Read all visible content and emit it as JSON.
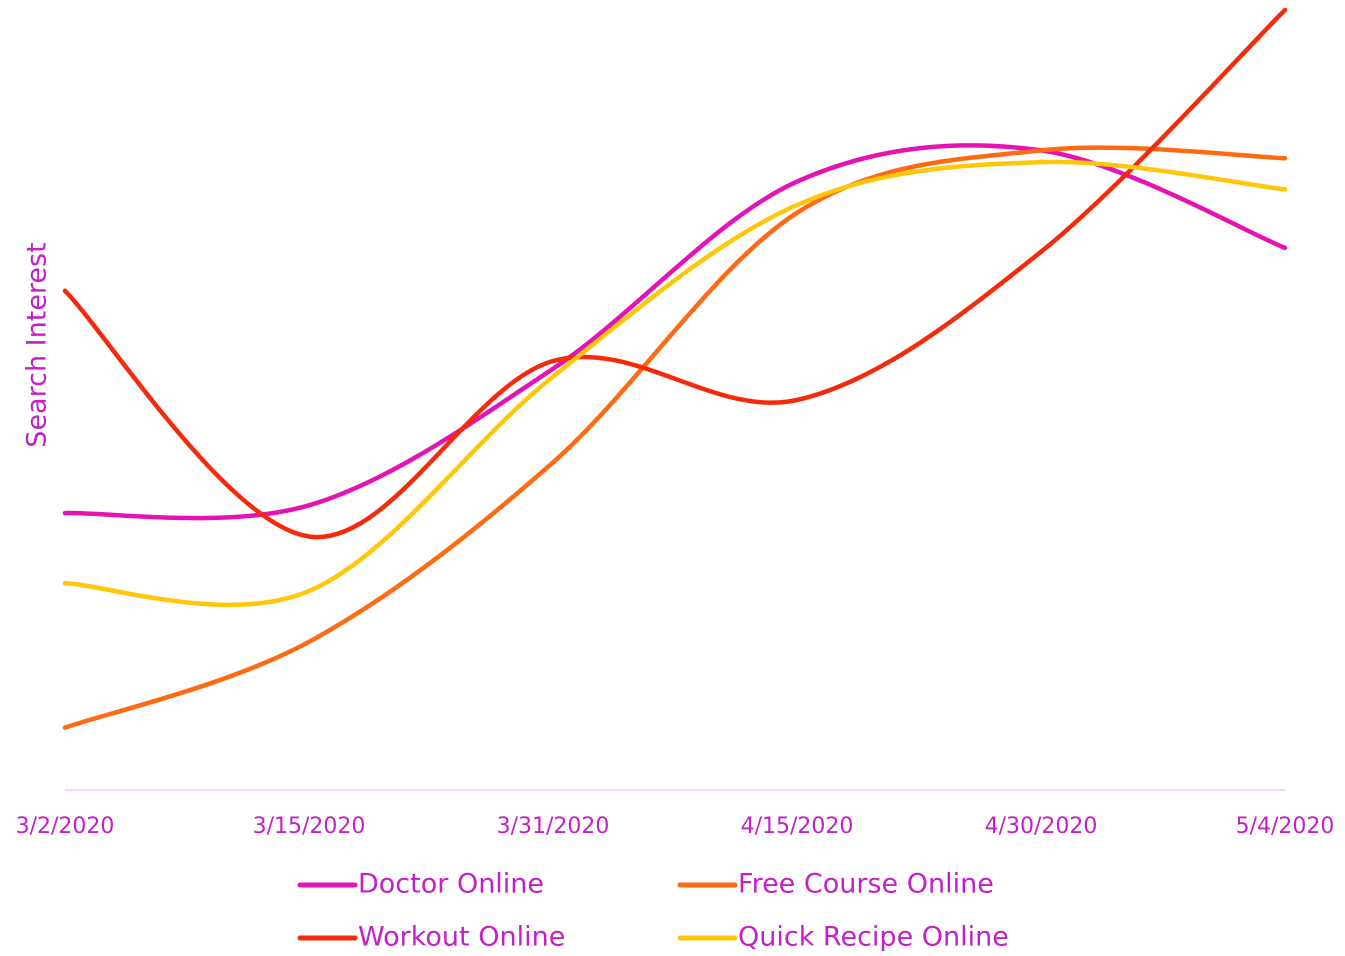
{
  "chart_data": {
    "type": "line",
    "y_label": "Search Interest",
    "categories": [
      "3/2/2020",
      "3/15/2020",
      "3/31/2020",
      "4/15/2020",
      "4/30/2020",
      "5/4/2020"
    ],
    "ylim": [
      0,
      100
    ],
    "smooth": true,
    "series": [
      {
        "name": "Doctor Online",
        "color": "#e512b4",
        "values": [
          35.5,
          36.5,
          54,
          78,
          82,
          69.5
        ]
      },
      {
        "name": "Free Course Online",
        "color": "#ff6a12",
        "values": [
          8,
          19,
          42,
          74,
          82,
          81
        ]
      },
      {
        "name": "Workout Online",
        "color": "#f52a0a",
        "values": [
          64,
          32.5,
          55,
          50,
          69,
          100
        ]
      },
      {
        "name": "Quick Recipe Online",
        "color": "#ffc60a",
        "values": [
          26.5,
          25.5,
          53,
          75,
          80.5,
          77
        ]
      }
    ]
  }
}
